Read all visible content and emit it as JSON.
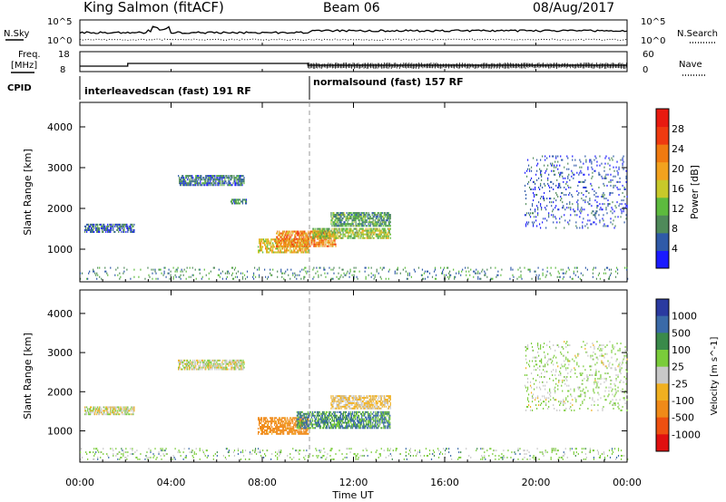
{
  "header": {
    "station": "King Salmon (fitACF)",
    "beam": "Beam 06",
    "date": "08/Aug/2017"
  },
  "top_panel": {
    "nsky_label": "N.Sky",
    "nsearch_label": "N.Search",
    "left_ticks": [
      "10^5",
      "10^0"
    ],
    "right_ticks": [
      "10^5",
      "10^0"
    ],
    "freq_label_1": "Freq.",
    "freq_label_2": "[MHz]",
    "freq_ticks": [
      "18",
      "8"
    ],
    "nave_label": "Nave",
    "nave_ticks": [
      "60",
      "0"
    ],
    "cpid_label": "CPID",
    "cpid_segments": [
      {
        "start_hour": 0,
        "label": "interleavedscan (fast) 191 RF"
      },
      {
        "start_hour": 10,
        "label": "normalsound (fast) 157 RF"
      }
    ]
  },
  "time_axis": {
    "ticks": [
      "00:00",
      "04:00",
      "08:00",
      "12:00",
      "16:00",
      "20:00",
      "00:00"
    ],
    "label": "Time UT",
    "range_hours": [
      0,
      24
    ]
  },
  "colors": {
    "power_scale": [
      "#1a1aff",
      "#2f5aa8",
      "#4f8a5a",
      "#5dbb3e",
      "#c8c92a",
      "#f2a21e",
      "#f07a10",
      "#ef3a10",
      "#e81a10"
    ],
    "velocity_scale": [
      "#2a3aa0",
      "#3a6aa8",
      "#3a8a4a",
      "#7acc3a",
      "#c8c8c8",
      "#f0b020",
      "#f08a18",
      "#ee5010",
      "#e01010"
    ]
  },
  "chart_data": [
    {
      "type": "heatmap",
      "panel": "power",
      "ylabel": "Slant Range [km]",
      "yticks": [
        "1000",
        "2000",
        "3000",
        "4000"
      ],
      "ylim": [
        200,
        4600
      ],
      "xlim": [
        0,
        24
      ],
      "colorbar_label": "Power [dB]",
      "colorbar_ticks": [
        "4",
        "8",
        "12",
        "16",
        "20",
        "24",
        "28"
      ],
      "colorbar_range": [
        0,
        32
      ],
      "patches": [
        {
          "t0": 0.2,
          "t1": 2.4,
          "r0": 1400,
          "r1": 1600,
          "value": 6
        },
        {
          "t0": 4.3,
          "t1": 7.2,
          "r0": 2550,
          "r1": 2800,
          "value": 7
        },
        {
          "t0": 6.6,
          "t1": 7.3,
          "r0": 2100,
          "r1": 2200,
          "value": 8
        },
        {
          "t0": 7.8,
          "t1": 10.0,
          "r0": 900,
          "r1": 1250,
          "value": 18
        },
        {
          "t0": 8.6,
          "t1": 11.2,
          "r0": 1050,
          "r1": 1450,
          "value": 22
        },
        {
          "t0": 10.2,
          "t1": 13.6,
          "r0": 1250,
          "r1": 1500,
          "value": 14
        },
        {
          "t0": 11.0,
          "t1": 13.6,
          "r0": 1550,
          "r1": 1900,
          "value": 10
        },
        {
          "t0": 0.0,
          "t1": 24.0,
          "r0": 250,
          "r1": 550,
          "value": 9
        },
        {
          "t0": 19.5,
          "t1": 24.0,
          "r0": 1500,
          "r1": 3300,
          "value": 5
        }
      ]
    },
    {
      "type": "heatmap",
      "panel": "velocity",
      "ylabel": "Slant Range [km]",
      "yticks": [
        "1000",
        "2000",
        "3000",
        "4000"
      ],
      "ylim": [
        200,
        4600
      ],
      "xlim": [
        0,
        24
      ],
      "colorbar_label": "Velocity [m s^-1]",
      "colorbar_ticks": [
        "1000",
        "500",
        "100",
        "25",
        "-25",
        "-100",
        "-500",
        "-1000"
      ],
      "patches": [
        {
          "t0": 0.2,
          "t1": 2.4,
          "r0": 1400,
          "r1": 1600,
          "value": 0
        },
        {
          "t0": 4.3,
          "t1": 7.2,
          "r0": 2550,
          "r1": 2800,
          "value": 0
        },
        {
          "t0": 7.8,
          "t1": 10.0,
          "r0": 900,
          "r1": 1350,
          "value": -150
        },
        {
          "t0": 9.5,
          "t1": 13.6,
          "r0": 1050,
          "r1": 1500,
          "value": 120
        },
        {
          "t0": 11.0,
          "t1": 13.6,
          "r0": 1550,
          "r1": 1900,
          "value": -40
        },
        {
          "t0": 0.0,
          "t1": 24.0,
          "r0": 250,
          "r1": 550,
          "value": 60
        },
        {
          "t0": 19.5,
          "t1": 24.0,
          "r0": 1500,
          "r1": 3300,
          "value": 30
        }
      ]
    }
  ]
}
